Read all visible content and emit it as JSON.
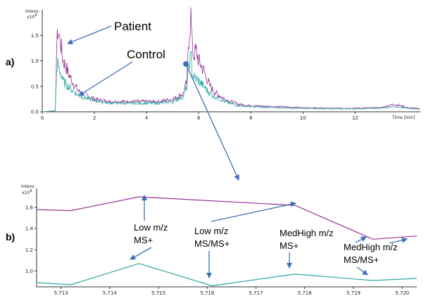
{
  "chart_data": [
    {
      "id": "a",
      "panel_label": "a)",
      "type": "line",
      "y_axis_title": "Intens.",
      "y_multiplier": "x10",
      "y_exponent": "9",
      "x_unit": "Time [min]",
      "xlim": [
        0,
        14.5
      ],
      "ylim": [
        0,
        2.0
      ],
      "x_ticks": [
        "0",
        "2",
        "4",
        "6",
        "8",
        "10",
        "12"
      ],
      "y_ticks": [
        "0.0",
        "0.5",
        "1.0",
        "1.5"
      ],
      "series": [
        {
          "name": "Patient",
          "color": "#993399",
          "x": [
            0,
            0.5,
            0.55,
            0.6,
            0.65,
            0.72,
            0.8,
            0.9,
            1.0,
            1.2,
            1.4,
            1.6,
            1.8,
            2.0,
            2.5,
            3.0,
            3.5,
            4.0,
            4.5,
            5.0,
            5.4,
            5.55,
            5.6,
            5.65,
            5.7,
            5.75,
            5.8,
            5.9,
            6.0,
            6.1,
            6.2,
            6.35,
            6.5,
            6.7,
            7.0,
            7.5,
            8.0,
            9.0,
            10.0,
            11.0,
            12.0,
            13.0,
            13.5,
            14.0,
            14.5
          ],
          "y": [
            0.0,
            0.02,
            1.2,
            1.6,
            1.5,
            1.3,
            1.0,
            0.9,
            0.75,
            0.55,
            0.4,
            0.35,
            0.3,
            0.25,
            0.2,
            0.2,
            0.2,
            0.2,
            0.2,
            0.25,
            0.35,
            0.6,
            1.3,
            1.6,
            1.9,
            1.3,
            1.1,
            1.2,
            1.0,
            0.9,
            0.8,
            0.6,
            0.45,
            0.35,
            0.25,
            0.15,
            0.12,
            0.1,
            0.08,
            0.07,
            0.07,
            0.08,
            0.15,
            0.08,
            0.06
          ]
        },
        {
          "name": "Control",
          "color": "#2eaaa0",
          "x": [
            0,
            0.5,
            0.55,
            0.6,
            0.65,
            0.72,
            0.8,
            0.9,
            1.0,
            1.2,
            1.4,
            1.6,
            1.8,
            2.0,
            2.5,
            3.0,
            3.5,
            4.0,
            4.5,
            5.0,
            5.4,
            5.55,
            5.6,
            5.65,
            5.7,
            5.75,
            5.8,
            5.9,
            6.0,
            6.1,
            6.2,
            6.35,
            6.5,
            6.7,
            7.0,
            7.5,
            8.0,
            9.0,
            10.0,
            11.0,
            12.0,
            13.0,
            13.5,
            14.0,
            14.5
          ],
          "y": [
            0.0,
            0.02,
            0.7,
            0.95,
            0.85,
            0.75,
            0.6,
            0.55,
            0.5,
            0.4,
            0.32,
            0.28,
            0.25,
            0.22,
            0.18,
            0.17,
            0.17,
            0.17,
            0.17,
            0.2,
            0.3,
            0.5,
            0.8,
            1.0,
            1.05,
            0.8,
            0.7,
            0.65,
            0.6,
            0.55,
            0.5,
            0.4,
            0.33,
            0.28,
            0.2,
            0.12,
            0.1,
            0.08,
            0.07,
            0.06,
            0.06,
            0.07,
            0.1,
            0.07,
            0.05
          ]
        }
      ],
      "annotations": [
        {
          "text": "Patient",
          "points_to": [
            0.8,
            1.2
          ]
        },
        {
          "text": "Control",
          "points_to": [
            1.4,
            0.3
          ]
        }
      ]
    },
    {
      "id": "b",
      "panel_label": "b)",
      "type": "line",
      "y_axis_title": "Intens.",
      "y_multiplier": "x10",
      "y_exponent": "9",
      "xlim": [
        5.7125,
        5.7203
      ],
      "ylim": [
        0.85,
        1.78
      ],
      "x_ticks": [
        "5.713",
        "5.714",
        "5.715",
        "5.716",
        "5.717",
        "5.718",
        "5.719",
        "5.720"
      ],
      "y_ticks": [
        "1.0",
        "1.2",
        "1.4",
        "1.6"
      ],
      "series": [
        {
          "name": "Patient",
          "color": "#993399",
          "x": [
            5.7125,
            5.7132,
            5.7146,
            5.7178,
            5.7194,
            5.7203
          ],
          "y": [
            1.58,
            1.57,
            1.7,
            1.62,
            1.3,
            1.33
          ]
        },
        {
          "name": "Control",
          "color": "#2eaaa0",
          "x": [
            5.7125,
            5.7132,
            5.7146,
            5.7161,
            5.7178,
            5.7194,
            5.7203
          ],
          "y": [
            0.89,
            0.87,
            1.07,
            0.86,
            0.97,
            0.91,
            0.93
          ]
        }
      ],
      "annotations": [
        {
          "text": "Low m/z",
          "text2": "MS+"
        },
        {
          "text": "Low m/z",
          "text2": "MS/MS+"
        },
        {
          "text": "MedHigh m/z",
          "text2": "MS+"
        },
        {
          "text": "MedHigh m/z",
          "text2": "MS/MS+"
        }
      ]
    }
  ]
}
